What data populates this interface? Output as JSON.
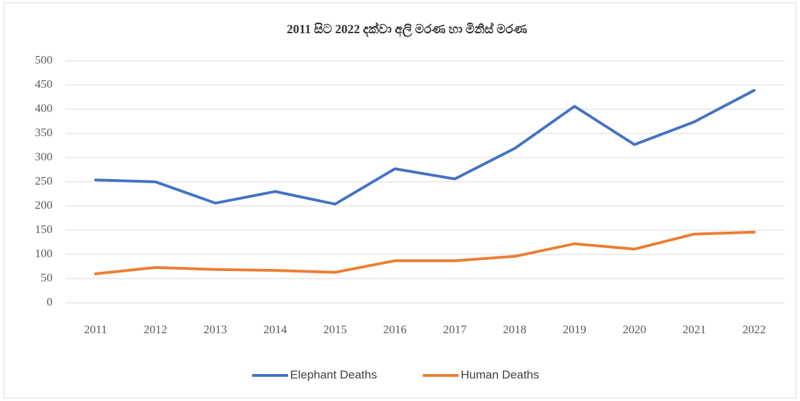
{
  "chart_data": {
    "type": "line",
    "title": "2011 සිට 2022 දක්වා අලි මරණ හා මිනිස් මරණ",
    "categories": [
      "2011",
      "2012",
      "2013",
      "2014",
      "2015",
      "2016",
      "2017",
      "2018",
      "2019",
      "2020",
      "2021",
      "2022"
    ],
    "series": [
      {
        "name": "Elephant Deaths",
        "color": "#4472c4",
        "values": [
          254,
          250,
          206,
          230,
          204,
          277,
          256,
          319,
          406,
          327,
          374,
          439
        ]
      },
      {
        "name": "Human Deaths",
        "color": "#ed7d31",
        "values": [
          60,
          73,
          69,
          67,
          63,
          87,
          87,
          96,
          122,
          111,
          142,
          146
        ]
      }
    ],
    "ylim": [
      0,
      500
    ],
    "yticks": [
      0,
      50,
      100,
      150,
      200,
      250,
      300,
      350,
      400,
      450,
      500
    ],
    "grid": true,
    "legend": "bottom"
  }
}
